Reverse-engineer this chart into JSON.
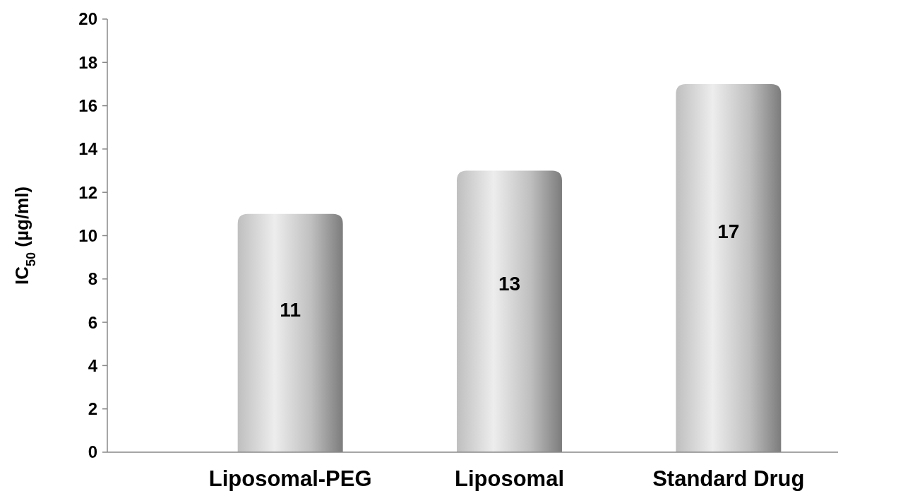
{
  "chart_data": {
    "type": "bar",
    "ylabel": "IC$_{50}$ (µg/ml)",
    "categories": [
      "Liposomal-PEG",
      "Liposomal",
      "Standard Drug"
    ],
    "values": [
      11,
      13,
      17
    ],
    "color": "#bfbfbf",
    "ylim": [
      0,
      20
    ],
    "yticks": [
      0,
      2,
      4,
      6,
      8,
      10,
      12,
      14,
      16,
      18,
      20
    ],
    "data_labels": true,
    "grid": false
  }
}
